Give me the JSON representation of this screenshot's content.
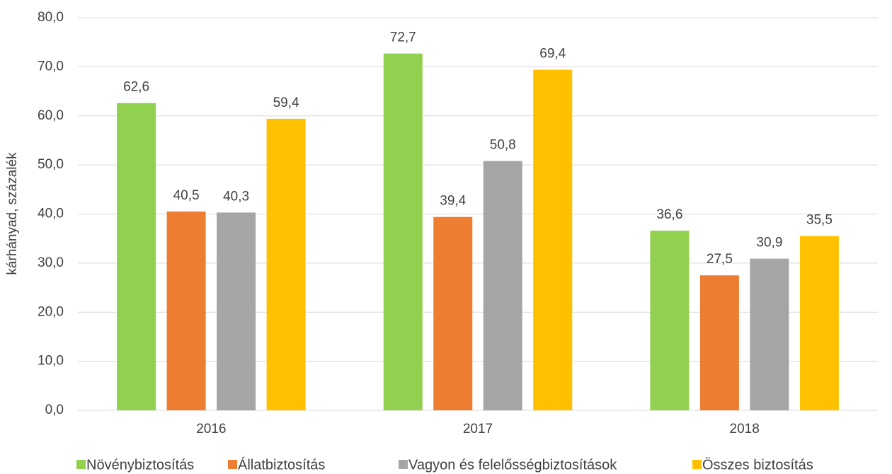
{
  "chart_data": {
    "type": "bar",
    "y_label": "kárhányad, százalék",
    "categories": [
      "2016",
      "2017",
      "2018"
    ],
    "series": [
      {
        "name": "Növénybiztosítás",
        "color": "#92d050",
        "values": [
          62.6,
          72.7,
          36.6
        ],
        "value_labels": [
          "62,6",
          "72,7",
          "36,6"
        ]
      },
      {
        "name": "Állatbiztosítás",
        "color": "#ed7d31",
        "values": [
          40.5,
          39.4,
          27.5
        ],
        "value_labels": [
          "40,5",
          "39,4",
          "27,5"
        ]
      },
      {
        "name": "Vagyon és felelősségbiztosítások",
        "color": "#a5a5a5",
        "values": [
          40.3,
          50.8,
          30.9
        ],
        "value_labels": [
          "40,3",
          "50,8",
          "30,9"
        ]
      },
      {
        "name": "Összes biztosítás",
        "color": "#ffc000",
        "values": [
          59.4,
          69.4,
          35.5
        ],
        "value_labels": [
          "59,4",
          "69,4",
          "35,5"
        ]
      }
    ],
    "ylim": [
      0,
      80
    ],
    "yticks": [
      {
        "value": 0,
        "label": "0,0"
      },
      {
        "value": 10,
        "label": "10,0"
      },
      {
        "value": 20,
        "label": "20,0"
      },
      {
        "value": 30,
        "label": "30,0"
      },
      {
        "value": 40,
        "label": "40,0"
      },
      {
        "value": 50,
        "label": "50,0"
      },
      {
        "value": 60,
        "label": "60,0"
      },
      {
        "value": 70,
        "label": "70,0"
      },
      {
        "value": 80,
        "label": "80,0"
      }
    ],
    "grid": true,
    "legend": "bottom"
  }
}
